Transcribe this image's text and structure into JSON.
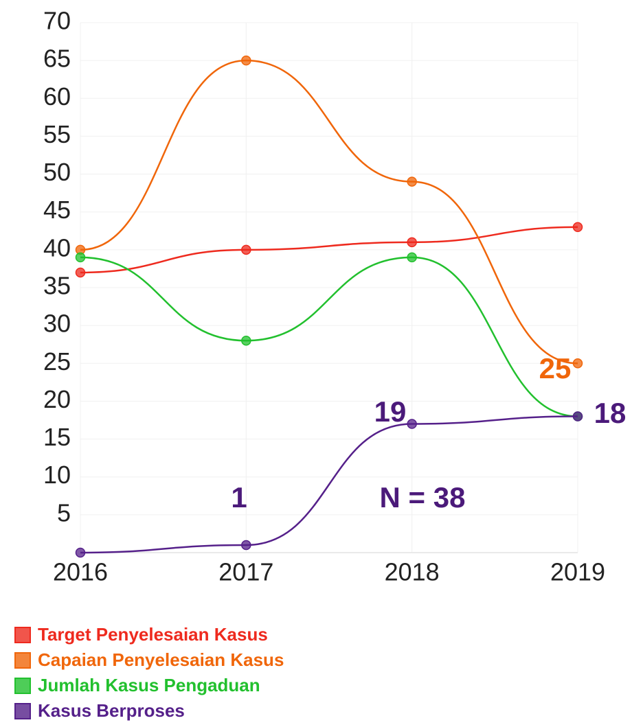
{
  "chart_data": {
    "type": "line",
    "categories": [
      "2016",
      "2017",
      "2018",
      "2019"
    ],
    "series": [
      {
        "name": "Target Penyelesaian Kasus",
        "color": "#ee2a1e",
        "values": [
          37,
          40,
          41,
          43
        ]
      },
      {
        "name": "Capaian Penyelesaian Kasus",
        "color": "#f0660a",
        "values": [
          40,
          65,
          49,
          25
        ]
      },
      {
        "name": "Jumlah Kasus Pengaduan",
        "color": "#22c02e",
        "values": [
          39,
          28,
          39,
          18
        ]
      },
      {
        "name": "Kasus Berproses",
        "color": "#55208a",
        "values": [
          0,
          1,
          17,
          18
        ]
      }
    ],
    "annotations": [
      "1",
      "19",
      "18",
      "25",
      "N = 38"
    ],
    "ylim": [
      0,
      70
    ],
    "yticks": [
      5,
      10,
      15,
      20,
      25,
      30,
      35,
      40,
      45,
      50,
      55,
      60,
      65,
      70
    ],
    "grid": true,
    "legend": "bottom"
  }
}
